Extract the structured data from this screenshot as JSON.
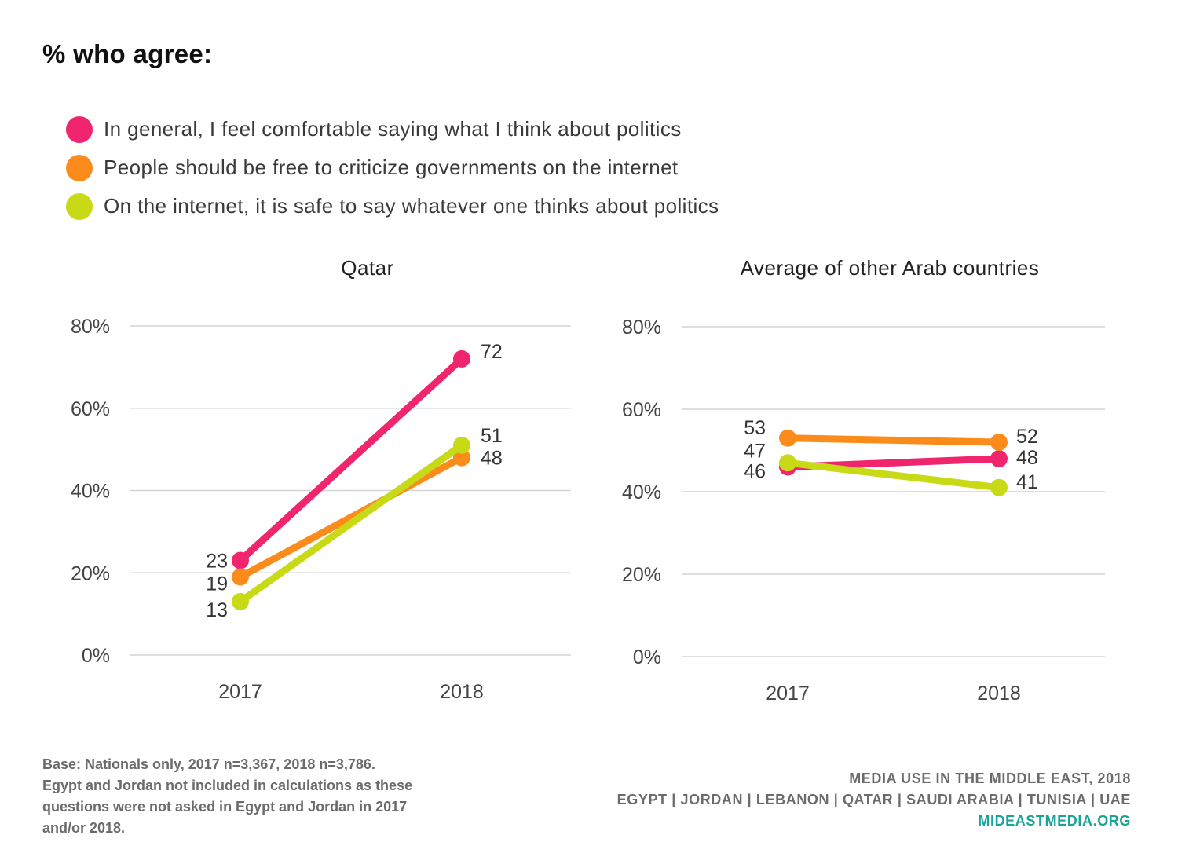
{
  "title": "% who agree:",
  "legend": [
    {
      "label": "In general, I feel comfortable saying what I think about politics",
      "color": "#f0256e"
    },
    {
      "label": "People should be free to criticize governments on the internet",
      "color": "#fb8c1c"
    },
    {
      "label": "On the internet, it is safe to say whatever one thinks about politics",
      "color": "#c8d916"
    }
  ],
  "chart_data": [
    {
      "type": "line",
      "title": "Qatar",
      "categories": [
        "2017",
        "2018"
      ],
      "ylim": [
        0,
        80
      ],
      "yticks": [
        "0%",
        "20%",
        "40%",
        "60%",
        "80%"
      ],
      "grid": true,
      "series": [
        {
          "name": "In general, I feel comfortable saying what I think about politics",
          "values": [
            23,
            72
          ],
          "color": "#f0256e"
        },
        {
          "name": "People should be free to criticize governments on the internet",
          "values": [
            19,
            48
          ],
          "color": "#fb8c1c"
        },
        {
          "name": "On the internet, it is safe to say whatever one thinks about politics",
          "values": [
            13,
            51
          ],
          "color": "#c8d916"
        }
      ]
    },
    {
      "type": "line",
      "title": "Average of other Arab countries",
      "categories": [
        "2017",
        "2018"
      ],
      "ylim": [
        0,
        80
      ],
      "yticks": [
        "0%",
        "20%",
        "40%",
        "60%",
        "80%"
      ],
      "grid": true,
      "series": [
        {
          "name": "In general, I feel comfortable saying what I think about politics",
          "values": [
            46,
            48
          ],
          "color": "#f0256e"
        },
        {
          "name": "People should be free to criticize governments on the internet",
          "values": [
            53,
            52
          ],
          "color": "#fb8c1c"
        },
        {
          "name": "On the internet, it is safe to say whatever one thinks about politics",
          "values": [
            47,
            41
          ],
          "color": "#c8d916"
        }
      ]
    }
  ],
  "footnote": [
    "Base: Nationals only, 2017 n=3,367, 2018 n=3,786.",
    "Egypt and Jordan not included in calculations as these",
    "questions were not asked in Egypt and Jordan in 2017",
    "and/or 2018."
  ],
  "credits": {
    "line1": "MEDIA USE IN THE MIDDLE EAST, 2018",
    "line2": "EGYPT | JORDAN | LEBANON | QATAR | SAUDI ARABIA | TUNISIA | UAE",
    "site": "MIDEASTMEDIA.ORG"
  }
}
